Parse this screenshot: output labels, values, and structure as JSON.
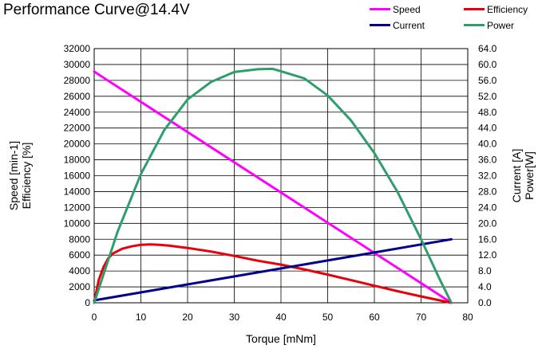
{
  "chart_data": {
    "type": "line",
    "title": "Performance Curve@14.4V",
    "xlabel": "Torque [mNm]",
    "ylabel_left": [
      "Speed [min-1]",
      "Efficiency [%]"
    ],
    "ylabel_right": [
      "Current [A]",
      "Power[W]"
    ],
    "xlim": [
      0,
      80
    ],
    "ylim_left": [
      0,
      32000
    ],
    "ylim_right": [
      0,
      64.0
    ],
    "x_ticks": [
      "0",
      "10",
      "20",
      "30",
      "40",
      "50",
      "60",
      "70",
      "80"
    ],
    "y_ticks_left": [
      "0",
      "2000",
      "4000",
      "6000",
      "8000",
      "10000",
      "12000",
      "14000",
      "16000",
      "18000",
      "20000",
      "22000",
      "24000",
      "26000",
      "28000",
      "30000",
      "32000"
    ],
    "y_ticks_right": [
      "0.0",
      "4.0",
      "8.0",
      "12.0",
      "16.0",
      "20.0",
      "24.0",
      "28.0",
      "32.0",
      "36.0",
      "40.0",
      "44.0",
      "48.0",
      "52.0",
      "56.0",
      "60.0",
      "64.0"
    ],
    "grid": true,
    "legend_position": "top-right",
    "series": [
      {
        "name": "Speed",
        "color": "#ff00ff",
        "axis": "left",
        "x": [
          0,
          76.5
        ],
        "y": [
          29100,
          0
        ]
      },
      {
        "name": "Efficiency",
        "color": "#e8000b",
        "axis": "left",
        "x": [
          0,
          0.5,
          1,
          2,
          3,
          4,
          6,
          8,
          10,
          12,
          14,
          16,
          20,
          25,
          30,
          35,
          40,
          45,
          50,
          55,
          60,
          65,
          70,
          74,
          76.5
        ],
        "y": [
          0,
          1500,
          2900,
          4500,
          5600,
          6200,
          6800,
          7100,
          7300,
          7350,
          7300,
          7200,
          6900,
          6450,
          5900,
          5300,
          4800,
          4200,
          3550,
          2850,
          2150,
          1450,
          800,
          300,
          0
        ]
      },
      {
        "name": "Current",
        "color": "#00008b",
        "axis": "right",
        "x": [
          0,
          76.5
        ],
        "y": [
          0.6,
          16.0
        ]
      },
      {
        "name": "Power",
        "color": "#2e9e6b",
        "axis": "right",
        "x": [
          0,
          5,
          10,
          15,
          20,
          25,
          30,
          35,
          38.2,
          40,
          45,
          50,
          55,
          60,
          65,
          70,
          74,
          76.5
        ],
        "y": [
          0,
          17.9,
          32.4,
          43.5,
          51.2,
          55.6,
          58.1,
          58.8,
          58.9,
          58.3,
          56.5,
          52.2,
          45.9,
          37.7,
          27.8,
          16.0,
          5.9,
          0
        ]
      }
    ]
  }
}
